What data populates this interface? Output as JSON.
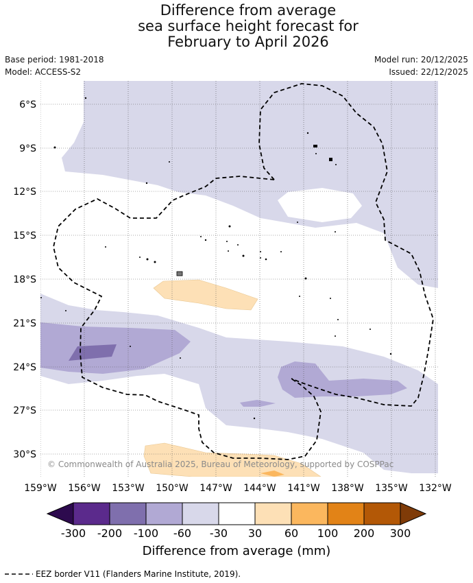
{
  "title": {
    "line1": "Difference from average",
    "line2": "sea surface height forecast for",
    "line3": "February to April 2026"
  },
  "meta": {
    "base_period": "Base period: 1981-2018",
    "model": "Model: ACCESS-S2",
    "model_run": "Model run: 20/12/2025",
    "issued": "Issued: 22/12/2025"
  },
  "map": {
    "lat_labels": [
      "6°S",
      "9°S",
      "12°S",
      "15°S",
      "18°S",
      "21°S",
      "24°S",
      "27°S",
      "30°S"
    ],
    "lon_labels": [
      "159°W",
      "156°W",
      "153°W",
      "150°W",
      "147°W",
      "144°W",
      "141°W",
      "138°W",
      "135°W",
      "132°W"
    ],
    "copyright": "© Commonwealth of Australia 2025, Bureau of Meteorology, supported by COSPPac"
  },
  "colorbar": {
    "title": "Difference from average (mm)",
    "ticks": [
      "-300",
      "-200",
      "-100",
      "-60",
      "-30",
      "30",
      "60",
      "100",
      "200",
      "300"
    ],
    "colors": {
      "lt_m300": "#2d0a4e",
      "m300_m200": "#5b2a8c",
      "m200_m100": "#7f6fad",
      "m100_m60": "#b1a9d4",
      "m60_m30": "#d8d8ea",
      "m30_30": "#ffffff",
      "p30_60": "#fde0b6",
      "p60_100": "#fbb75e",
      "p100_200": "#e28317",
      "p200_300": "#b35806",
      "gt_300": "#7f3b08"
    }
  },
  "footer": {
    "legend_text": "EEZ border V11 (Flanders Marine Institute, 2019)."
  }
}
